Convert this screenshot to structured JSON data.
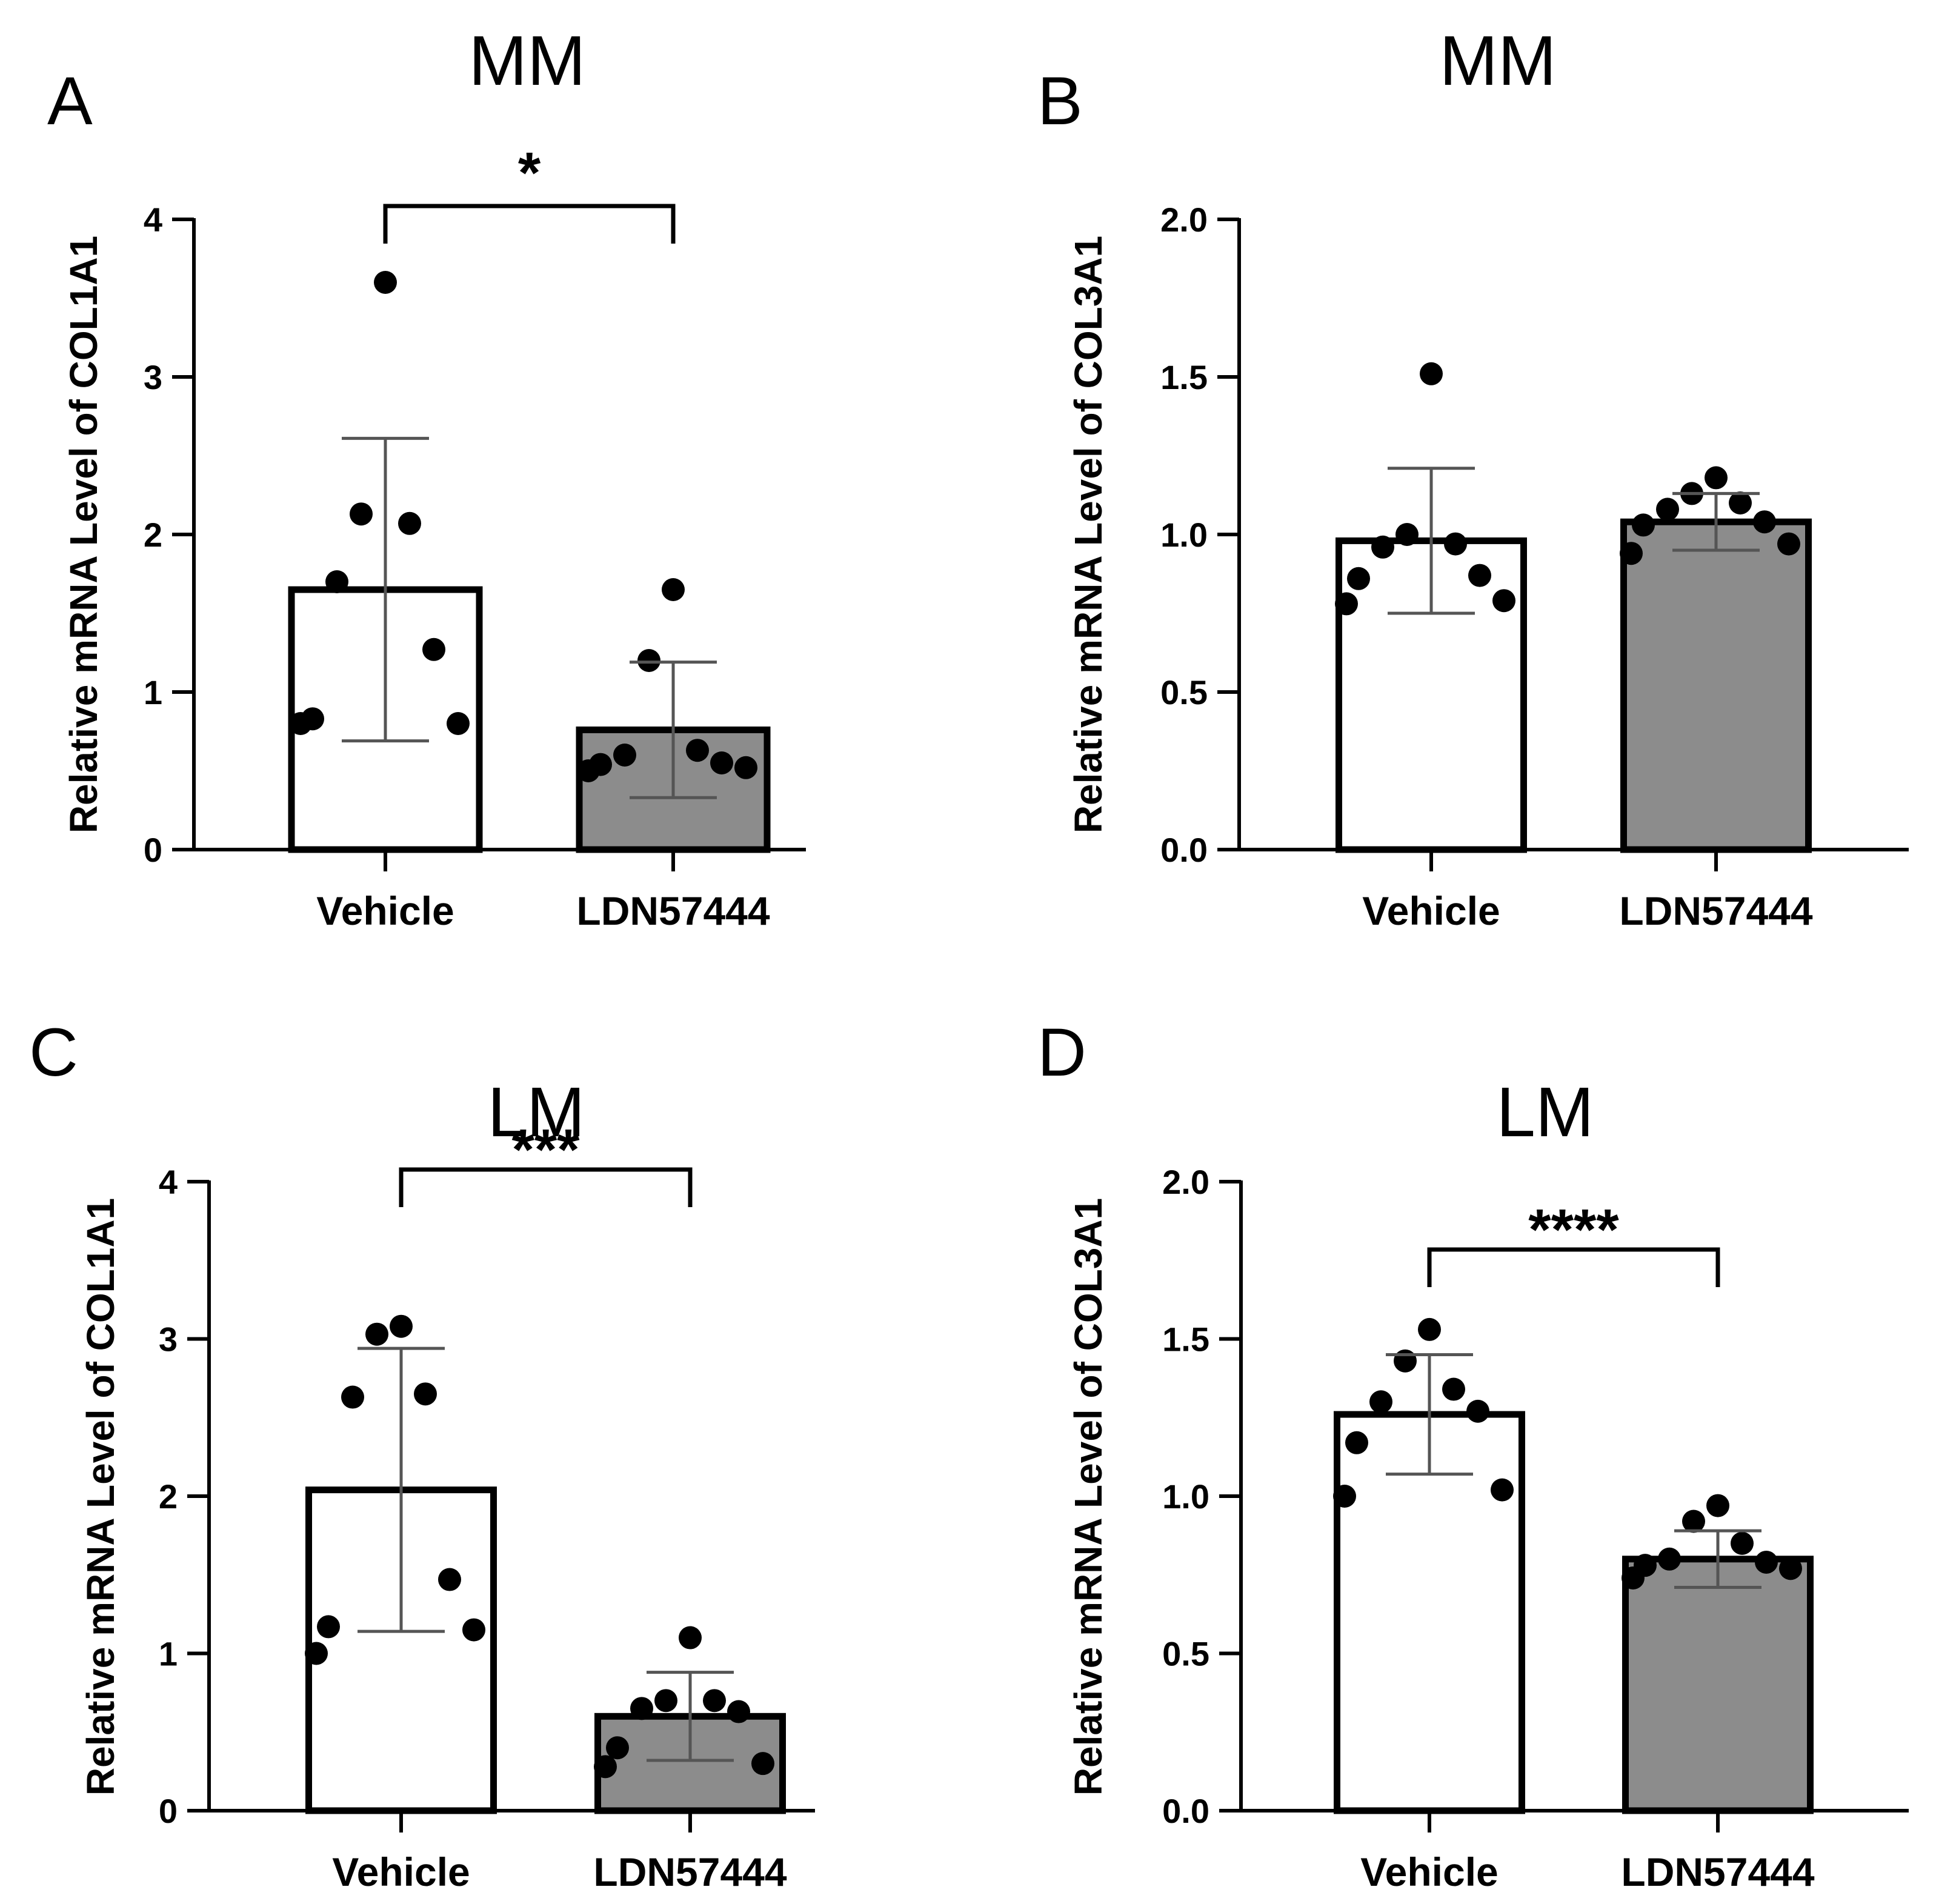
{
  "chart_data": [
    {
      "type": "bar",
      "panel": "A",
      "title": "MM",
      "ylabel": "Relative mRNA Level of COL1A1",
      "categories": [
        "Vehicle",
        "LDN57444"
      ],
      "ylim": [
        0,
        4
      ],
      "yticks": [
        "0",
        "1",
        "2",
        "3",
        "4"
      ],
      "ytick_values": [
        0,
        1,
        2,
        3,
        4
      ],
      "values": [
        1.65,
        0.76
      ],
      "sd": [
        0.96,
        0.43
      ],
      "points": [
        [
          3.6,
          2.13,
          2.07,
          1.7,
          1.27,
          0.83,
          0.8,
          0.8
        ],
        [
          1.65,
          1.2,
          0.63,
          0.6,
          0.55,
          0.54,
          0.52,
          0.5
        ]
      ],
      "significance": "*"
    },
    {
      "type": "bar",
      "panel": "B",
      "title": "MM",
      "ylabel": "Relative mRNA Level of COL3A1",
      "categories": [
        "Vehicle",
        "LDN57444"
      ],
      "ylim": [
        0,
        2
      ],
      "yticks": [
        "0.0",
        "0.5",
        "1.0",
        "1.5",
        "2.0"
      ],
      "ytick_values": [
        0,
        0.5,
        1,
        1.5,
        2
      ],
      "values": [
        0.98,
        1.04
      ],
      "sd": [
        0.23,
        0.09
      ],
      "points": [
        [
          1.51,
          1.0,
          0.97,
          0.96,
          0.87,
          0.86,
          0.79,
          0.78
        ],
        [
          1.18,
          1.13,
          1.1,
          1.08,
          1.04,
          1.03,
          0.97,
          0.94
        ]
      ],
      "significance": ""
    },
    {
      "type": "bar",
      "panel": "C",
      "title": "LM",
      "ylabel": "Relative mRNA Level of COL1A1",
      "categories": [
        "Vehicle",
        "LDN57444"
      ],
      "ylim": [
        0,
        4
      ],
      "yticks": [
        "0",
        "1",
        "2",
        "3",
        "4"
      ],
      "ytick_values": [
        0,
        1,
        2,
        3,
        4
      ],
      "values": [
        2.04,
        0.6
      ],
      "sd": [
        0.9,
        0.28
      ],
      "points": [
        [
          3.08,
          3.03,
          2.65,
          2.63,
          1.47,
          1.17,
          1.15,
          1.0
        ],
        [
          1.1,
          0.7,
          0.7,
          0.65,
          0.63,
          0.4,
          0.3,
          0.28
        ]
      ],
      "significance": "***"
    },
    {
      "type": "bar",
      "panel": "D",
      "title": "LM",
      "ylabel": "Relative mRNA Level of COL3A1",
      "categories": [
        "Vehicle",
        "LDN57444"
      ],
      "ylim": [
        0,
        2
      ],
      "yticks": [
        "0.0",
        "0.5",
        "1.0",
        "1.5",
        "2.0"
      ],
      "ytick_values": [
        0,
        0.5,
        1,
        1.5,
        2
      ],
      "values": [
        1.26,
        0.8
      ],
      "sd": [
        0.19,
        0.09
      ],
      "points": [
        [
          1.53,
          1.43,
          1.34,
          1.3,
          1.27,
          1.17,
          1.02,
          1.0
        ],
        [
          0.97,
          0.92,
          0.85,
          0.8,
          0.79,
          0.78,
          0.77,
          0.74
        ]
      ],
      "significance": "****"
    }
  ],
  "colors": {
    "axis": "#000000",
    "vehicle_fill": "#ffffff",
    "ldn_fill": "#8c8c8c",
    "point": "#000000",
    "errorbar": "#555555"
  }
}
